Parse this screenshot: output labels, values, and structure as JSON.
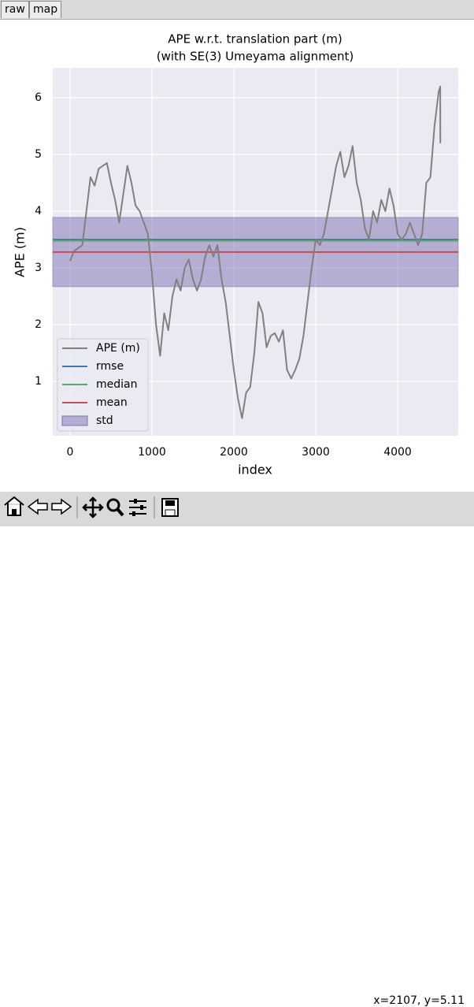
{
  "tabs": [
    "raw",
    "map"
  ],
  "chart_data": {
    "type": "line",
    "title": "APE w.r.t. translation part (m)",
    "subtitle": "(with SE(3) Umeyama alignment)",
    "xlabel": "index",
    "ylabel": "APE (m)",
    "xlim": [
      -211,
      4740
    ],
    "ylim": [
      0.04,
      6.53
    ],
    "xticks": [
      0,
      1000,
      2000,
      3000,
      4000
    ],
    "yticks": [
      1,
      2,
      3,
      4,
      5,
      6
    ],
    "grid": true,
    "legend": "lower left",
    "series": [
      {
        "name": "APE (m)",
        "color": "#808080",
        "x": [
          0,
          50,
          150,
          200,
          250,
          300,
          350,
          450,
          500,
          550,
          600,
          650,
          700,
          750,
          800,
          850,
          900,
          950,
          1000,
          1050,
          1100,
          1150,
          1200,
          1250,
          1300,
          1350,
          1400,
          1450,
          1500,
          1550,
          1600,
          1650,
          1700,
          1750,
          1800,
          1850,
          1900,
          1950,
          2000,
          2050,
          2100,
          2150,
          2200,
          2250,
          2300,
          2350,
          2400,
          2450,
          2500,
          2550,
          2600,
          2650,
          2700,
          2750,
          2800,
          2850,
          2900,
          2950,
          3000,
          3050,
          3100,
          3150,
          3200,
          3250,
          3300,
          3350,
          3400,
          3450,
          3500,
          3550,
          3600,
          3650,
          3700,
          3750,
          3800,
          3850,
          3900,
          3950,
          4000,
          4050,
          4100,
          4150,
          4200,
          4250,
          4300,
          4350,
          4400,
          4450,
          4500,
          4520,
          4521
        ],
        "values": [
          3.12,
          3.3,
          3.4,
          4.0,
          4.6,
          4.45,
          4.75,
          4.85,
          4.5,
          4.2,
          3.8,
          4.3,
          4.8,
          4.5,
          4.1,
          4.0,
          3.8,
          3.6,
          2.9,
          2.0,
          1.45,
          2.2,
          1.9,
          2.5,
          2.8,
          2.6,
          3.0,
          3.15,
          2.8,
          2.6,
          2.8,
          3.2,
          3.4,
          3.2,
          3.4,
          2.8,
          2.4,
          1.8,
          1.2,
          0.7,
          0.35,
          0.8,
          0.9,
          1.5,
          2.4,
          2.2,
          1.6,
          1.8,
          1.85,
          1.7,
          1.9,
          1.2,
          1.05,
          1.2,
          1.4,
          1.8,
          2.4,
          3.0,
          3.5,
          3.4,
          3.6,
          4.0,
          4.4,
          4.8,
          5.05,
          4.6,
          4.8,
          5.15,
          4.5,
          4.2,
          3.7,
          3.5,
          4.0,
          3.8,
          4.2,
          4.0,
          4.4,
          4.1,
          3.6,
          3.5,
          3.6,
          3.8,
          3.6,
          3.4,
          3.6,
          4.5,
          4.6,
          5.5,
          6.1,
          6.2,
          5.2
        ]
      }
    ],
    "stats": [
      {
        "name": "rmse",
        "color": "#4c72b0",
        "value": 3.5
      },
      {
        "name": "median",
        "color": "#55a868",
        "value": 3.48
      },
      {
        "name": "mean",
        "color": "#c44e52",
        "value": 3.28
      }
    ],
    "std": {
      "name": "std",
      "color": "#8172b2",
      "value": 0.61
    }
  },
  "status": "x=2107, y=5.11"
}
